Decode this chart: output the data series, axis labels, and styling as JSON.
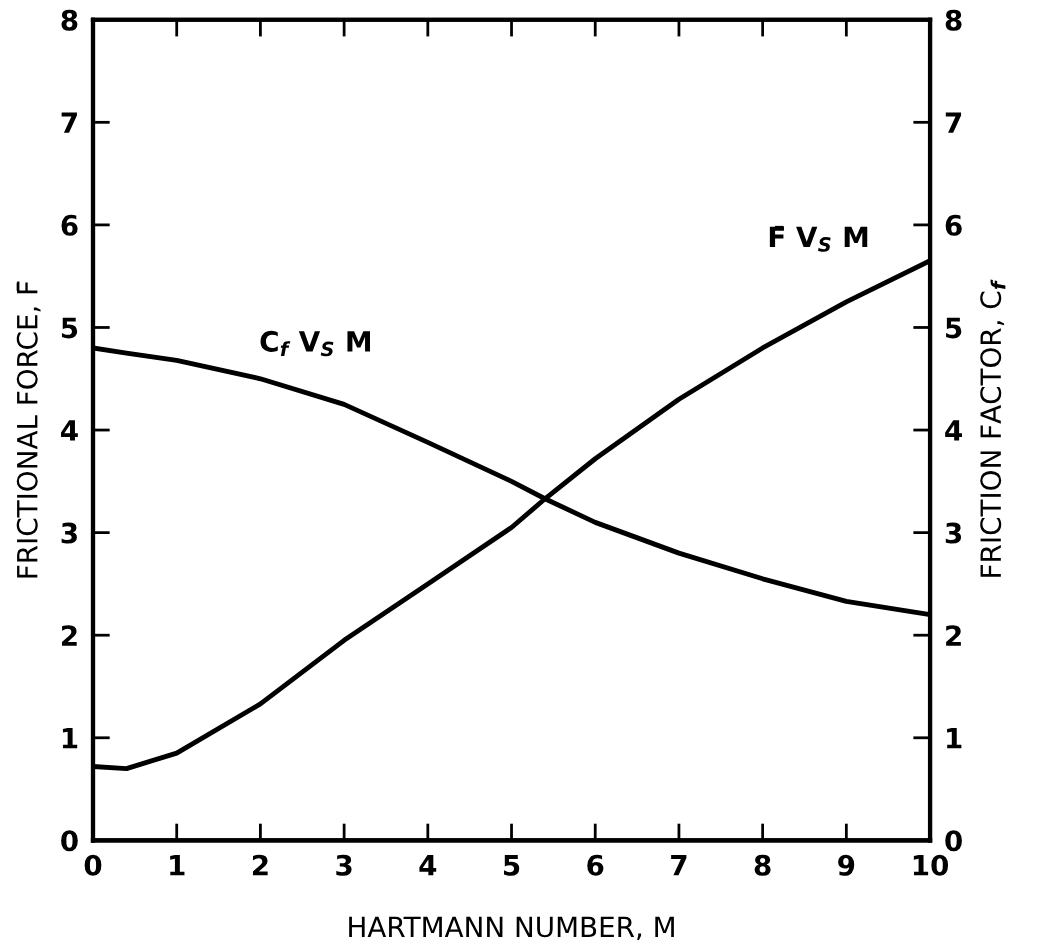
{
  "chart_data": {
    "type": "line",
    "xlabel": "HARTMANN NUMBER, M",
    "ylabel": "FRICTIONAL FORCE, F̄",
    "y2label": "FRICTION FACTOR, C$_{f}$",
    "x": [
      0,
      0.4,
      1,
      2,
      3,
      4,
      5,
      5.4,
      6,
      7,
      8,
      9,
      10
    ],
    "series": [
      {
        "name": "F̄ V$_{S}$ M",
        "color": "#000000",
        "values": [
          0.72,
          0.7,
          0.85,
          1.33,
          1.95,
          2.5,
          3.05,
          3.33,
          3.72,
          4.3,
          4.8,
          5.25,
          5.65
        ]
      },
      {
        "name": "C$_{f}$ V$_{S}$ M",
        "color": "#000000",
        "axis": "y2",
        "values": [
          4.8,
          4.75,
          4.68,
          4.5,
          4.25,
          3.88,
          3.5,
          3.33,
          3.1,
          2.8,
          2.55,
          2.33,
          2.2
        ]
      }
    ],
    "xlim": [
      0,
      10
    ],
    "xticks": [
      0,
      1,
      2,
      3,
      4,
      5,
      6,
      7,
      8,
      9,
      10
    ],
    "ylim": [
      0,
      8
    ],
    "yticks": [
      0,
      1,
      2,
      3,
      4,
      5,
      6,
      7,
      8
    ],
    "y2lim": [
      0,
      8
    ],
    "y2ticks": [
      0,
      1,
      2,
      3,
      4,
      5,
      6,
      7,
      8
    ],
    "grid": false,
    "marker": "none",
    "line_style": "solid"
  }
}
